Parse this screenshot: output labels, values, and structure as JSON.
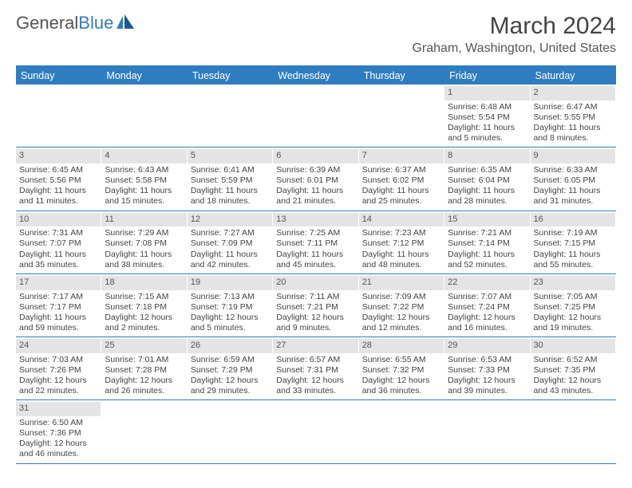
{
  "logo": {
    "text1": "General",
    "text2": "Blue"
  },
  "title": "March 2024",
  "location": "Graham, Washington, United States",
  "colors": {
    "header_bg": "#2f7dc1",
    "header_text": "#ffffff",
    "date_bg": "#e4e4e4",
    "body_text": "#444444",
    "border": "#2f7dc1"
  },
  "day_names": [
    "Sunday",
    "Monday",
    "Tuesday",
    "Wednesday",
    "Thursday",
    "Friday",
    "Saturday"
  ],
  "weeks": [
    [
      null,
      null,
      null,
      null,
      null,
      {
        "d": "1",
        "sr": "Sunrise: 6:48 AM",
        "ss": "Sunset: 5:54 PM",
        "dl1": "Daylight: 11 hours",
        "dl2": "and 5 minutes."
      },
      {
        "d": "2",
        "sr": "Sunrise: 6:47 AM",
        "ss": "Sunset: 5:55 PM",
        "dl1": "Daylight: 11 hours",
        "dl2": "and 8 minutes."
      }
    ],
    [
      {
        "d": "3",
        "sr": "Sunrise: 6:45 AM",
        "ss": "Sunset: 5:56 PM",
        "dl1": "Daylight: 11 hours",
        "dl2": "and 11 minutes."
      },
      {
        "d": "4",
        "sr": "Sunrise: 6:43 AM",
        "ss": "Sunset: 5:58 PM",
        "dl1": "Daylight: 11 hours",
        "dl2": "and 15 minutes."
      },
      {
        "d": "5",
        "sr": "Sunrise: 6:41 AM",
        "ss": "Sunset: 5:59 PM",
        "dl1": "Daylight: 11 hours",
        "dl2": "and 18 minutes."
      },
      {
        "d": "6",
        "sr": "Sunrise: 6:39 AM",
        "ss": "Sunset: 6:01 PM",
        "dl1": "Daylight: 11 hours",
        "dl2": "and 21 minutes."
      },
      {
        "d": "7",
        "sr": "Sunrise: 6:37 AM",
        "ss": "Sunset: 6:02 PM",
        "dl1": "Daylight: 11 hours",
        "dl2": "and 25 minutes."
      },
      {
        "d": "8",
        "sr": "Sunrise: 6:35 AM",
        "ss": "Sunset: 6:04 PM",
        "dl1": "Daylight: 11 hours",
        "dl2": "and 28 minutes."
      },
      {
        "d": "9",
        "sr": "Sunrise: 6:33 AM",
        "ss": "Sunset: 6:05 PM",
        "dl1": "Daylight: 11 hours",
        "dl2": "and 31 minutes."
      }
    ],
    [
      {
        "d": "10",
        "sr": "Sunrise: 7:31 AM",
        "ss": "Sunset: 7:07 PM",
        "dl1": "Daylight: 11 hours",
        "dl2": "and 35 minutes."
      },
      {
        "d": "11",
        "sr": "Sunrise: 7:29 AM",
        "ss": "Sunset: 7:08 PM",
        "dl1": "Daylight: 11 hours",
        "dl2": "and 38 minutes."
      },
      {
        "d": "12",
        "sr": "Sunrise: 7:27 AM",
        "ss": "Sunset: 7:09 PM",
        "dl1": "Daylight: 11 hours",
        "dl2": "and 42 minutes."
      },
      {
        "d": "13",
        "sr": "Sunrise: 7:25 AM",
        "ss": "Sunset: 7:11 PM",
        "dl1": "Daylight: 11 hours",
        "dl2": "and 45 minutes."
      },
      {
        "d": "14",
        "sr": "Sunrise: 7:23 AM",
        "ss": "Sunset: 7:12 PM",
        "dl1": "Daylight: 11 hours",
        "dl2": "and 48 minutes."
      },
      {
        "d": "15",
        "sr": "Sunrise: 7:21 AM",
        "ss": "Sunset: 7:14 PM",
        "dl1": "Daylight: 11 hours",
        "dl2": "and 52 minutes."
      },
      {
        "d": "16",
        "sr": "Sunrise: 7:19 AM",
        "ss": "Sunset: 7:15 PM",
        "dl1": "Daylight: 11 hours",
        "dl2": "and 55 minutes."
      }
    ],
    [
      {
        "d": "17",
        "sr": "Sunrise: 7:17 AM",
        "ss": "Sunset: 7:17 PM",
        "dl1": "Daylight: 11 hours",
        "dl2": "and 59 minutes."
      },
      {
        "d": "18",
        "sr": "Sunrise: 7:15 AM",
        "ss": "Sunset: 7:18 PM",
        "dl1": "Daylight: 12 hours",
        "dl2": "and 2 minutes."
      },
      {
        "d": "19",
        "sr": "Sunrise: 7:13 AM",
        "ss": "Sunset: 7:19 PM",
        "dl1": "Daylight: 12 hours",
        "dl2": "and 5 minutes."
      },
      {
        "d": "20",
        "sr": "Sunrise: 7:11 AM",
        "ss": "Sunset: 7:21 PM",
        "dl1": "Daylight: 12 hours",
        "dl2": "and 9 minutes."
      },
      {
        "d": "21",
        "sr": "Sunrise: 7:09 AM",
        "ss": "Sunset: 7:22 PM",
        "dl1": "Daylight: 12 hours",
        "dl2": "and 12 minutes."
      },
      {
        "d": "22",
        "sr": "Sunrise: 7:07 AM",
        "ss": "Sunset: 7:24 PM",
        "dl1": "Daylight: 12 hours",
        "dl2": "and 16 minutes."
      },
      {
        "d": "23",
        "sr": "Sunrise: 7:05 AM",
        "ss": "Sunset: 7:25 PM",
        "dl1": "Daylight: 12 hours",
        "dl2": "and 19 minutes."
      }
    ],
    [
      {
        "d": "24",
        "sr": "Sunrise: 7:03 AM",
        "ss": "Sunset: 7:26 PM",
        "dl1": "Daylight: 12 hours",
        "dl2": "and 22 minutes."
      },
      {
        "d": "25",
        "sr": "Sunrise: 7:01 AM",
        "ss": "Sunset: 7:28 PM",
        "dl1": "Daylight: 12 hours",
        "dl2": "and 26 minutes."
      },
      {
        "d": "26",
        "sr": "Sunrise: 6:59 AM",
        "ss": "Sunset: 7:29 PM",
        "dl1": "Daylight: 12 hours",
        "dl2": "and 29 minutes."
      },
      {
        "d": "27",
        "sr": "Sunrise: 6:57 AM",
        "ss": "Sunset: 7:31 PM",
        "dl1": "Daylight: 12 hours",
        "dl2": "and 33 minutes."
      },
      {
        "d": "28",
        "sr": "Sunrise: 6:55 AM",
        "ss": "Sunset: 7:32 PM",
        "dl1": "Daylight: 12 hours",
        "dl2": "and 36 minutes."
      },
      {
        "d": "29",
        "sr": "Sunrise: 6:53 AM",
        "ss": "Sunset: 7:33 PM",
        "dl1": "Daylight: 12 hours",
        "dl2": "and 39 minutes."
      },
      {
        "d": "30",
        "sr": "Sunrise: 6:52 AM",
        "ss": "Sunset: 7:35 PM",
        "dl1": "Daylight: 12 hours",
        "dl2": "and 43 minutes."
      }
    ],
    [
      {
        "d": "31",
        "sr": "Sunrise: 6:50 AM",
        "ss": "Sunset: 7:36 PM",
        "dl1": "Daylight: 12 hours",
        "dl2": "and 46 minutes."
      },
      null,
      null,
      null,
      null,
      null,
      null
    ]
  ]
}
